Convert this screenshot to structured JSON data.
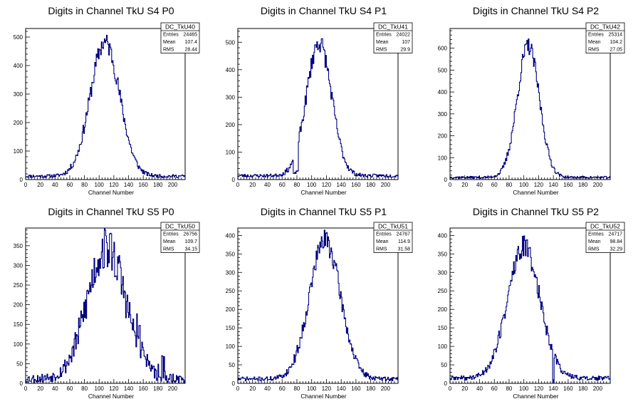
{
  "chart_data": [
    {
      "type": "histogram",
      "title": "Digits in Channel TkU S4 P0",
      "xlabel": "Channel Number",
      "ylabel": "",
      "xlim": [
        0,
        217
      ],
      "ylim": [
        0,
        530
      ],
      "x_ticks": [
        0,
        20,
        40,
        60,
        80,
        100,
        120,
        140,
        160,
        180,
        200
      ],
      "y_ticks": [
        0,
        100,
        200,
        300,
        400,
        500
      ],
      "color": "#000080",
      "series": [
        {
          "name": "DC_TkU40",
          "shape": "gauss",
          "mean": 108,
          "sigma": 20,
          "peak": 470,
          "baseline": 12,
          "seed": 11
        }
      ],
      "stats": {
        "name": "DC_TkU40",
        "rows": [
          [
            "Entries",
            "24465"
          ],
          [
            "Mean",
            "107.4"
          ],
          [
            "RMS",
            "28.44"
          ]
        ]
      }
    },
    {
      "type": "histogram",
      "title": "Digits in Channel TkU S4 P1",
      "xlabel": "Channel Number",
      "ylabel": "",
      "xlim": [
        0,
        217
      ],
      "ylim": [
        0,
        550
      ],
      "x_ticks": [
        0,
        20,
        40,
        60,
        80,
        100,
        120,
        140,
        160,
        180,
        200
      ],
      "y_ticks": [
        0,
        100,
        200,
        300,
        400,
        500
      ],
      "color": "#000080",
      "series": [
        {
          "name": "DC_TkU41",
          "shape": "gauss",
          "mean": 110,
          "sigma": 17,
          "peak": 485,
          "baseline": 14,
          "seed": 23,
          "dip": [
            75,
            82
          ]
        }
      ],
      "stats": {
        "name": "DC_TkU41",
        "rows": [
          [
            "Entries",
            "24022"
          ],
          [
            "Mean",
            "107"
          ],
          [
            "RMS",
            "29.9"
          ]
        ]
      }
    },
    {
      "type": "histogram",
      "title": "Digits in Channel TkU S4 P2",
      "xlabel": "Channel Number",
      "ylabel": "",
      "xlim": [
        0,
        217
      ],
      "ylim": [
        0,
        690
      ],
      "x_ticks": [
        0,
        20,
        40,
        60,
        80,
        100,
        120,
        140,
        160,
        180,
        200
      ],
      "y_ticks": [
        0,
        100,
        200,
        300,
        400,
        500,
        600
      ],
      "color": "#000080",
      "series": [
        {
          "name": "DC_TkU42",
          "shape": "gauss",
          "mean": 106,
          "sigma": 15,
          "peak": 600,
          "baseline": 10,
          "seed": 37
        }
      ],
      "stats": {
        "name": "DC_TkU42",
        "rows": [
          [
            "Entries",
            "25314"
          ],
          [
            "Mean",
            "104.2"
          ],
          [
            "RMS",
            "27.05"
          ]
        ]
      }
    },
    {
      "type": "histogram",
      "title": "Digits in Channel TkU S5 P0",
      "xlabel": "Channel Number",
      "ylabel": "",
      "xlim": [
        0,
        217
      ],
      "ylim": [
        0,
        395
      ],
      "x_ticks": [
        0,
        20,
        40,
        60,
        80,
        100,
        120,
        140,
        160,
        180,
        200
      ],
      "y_ticks": [
        0,
        50,
        100,
        150,
        200,
        250,
        300,
        350
      ],
      "color": "#000080",
      "series": [
        {
          "name": "DC_TkU50",
          "shape": "gauss",
          "mean": 110,
          "sigma": 26,
          "peak": 335,
          "baseline": 12,
          "seed": 53,
          "noisy": true
        }
      ],
      "stats": {
        "name": "DC_TkU50",
        "rows": [
          [
            "Entries",
            "26756"
          ],
          [
            "Mean",
            "109.7"
          ],
          [
            "RMS",
            "34.15"
          ]
        ]
      }
    },
    {
      "type": "histogram",
      "title": "Digits in Channel TkU S5 P1",
      "xlabel": "Channel Number",
      "ylabel": "",
      "xlim": [
        0,
        217
      ],
      "ylim": [
        0,
        420
      ],
      "x_ticks": [
        0,
        20,
        40,
        60,
        80,
        100,
        120,
        140,
        160,
        180,
        200
      ],
      "y_ticks": [
        0,
        50,
        100,
        150,
        200,
        250,
        300,
        350,
        400
      ],
      "color": "#000080",
      "series": [
        {
          "name": "DC_TkU51",
          "shape": "gauss",
          "mean": 118,
          "sigma": 21,
          "peak": 375,
          "baseline": 12,
          "seed": 71
        }
      ],
      "stats": {
        "name": "DC_TkU51",
        "rows": [
          [
            "Entries",
            "24767"
          ],
          [
            "Mean",
            "114.9"
          ],
          [
            "RMS",
            "31.58"
          ]
        ]
      }
    },
    {
      "type": "histogram",
      "title": "Digits in Channel TkU S5 P2",
      "xlabel": "Channel Number",
      "ylabel": "",
      "xlim": [
        0,
        217
      ],
      "ylim": [
        0,
        420
      ],
      "x_ticks": [
        0,
        20,
        40,
        60,
        80,
        100,
        120,
        140,
        160,
        180,
        200
      ],
      "y_ticks": [
        0,
        50,
        100,
        150,
        200,
        250,
        300,
        350,
        400
      ],
      "color": "#000080",
      "series": [
        {
          "name": "DC_TkU52",
          "shape": "gauss",
          "mean": 100,
          "sigma": 22,
          "peak": 355,
          "baseline": 14,
          "seed": 89,
          "spike": [
            140,
            0
          ]
        }
      ],
      "stats": {
        "name": "DC_TkU52",
        "rows": [
          [
            "Entries",
            "24717"
          ],
          [
            "Mean",
            "98.84"
          ],
          [
            "RMS",
            "32.29"
          ]
        ]
      }
    }
  ]
}
